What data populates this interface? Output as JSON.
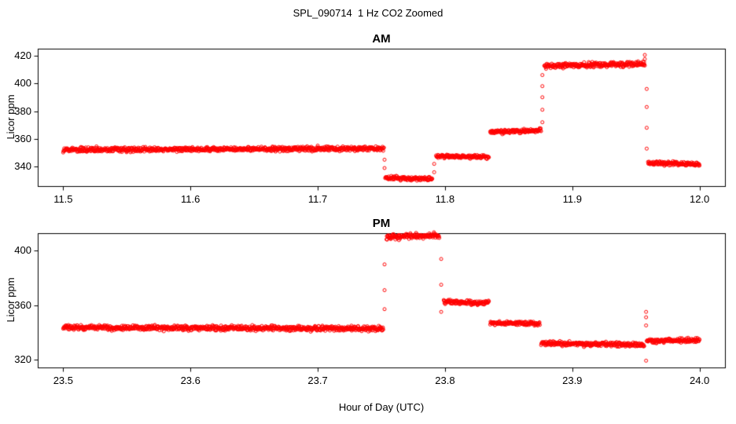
{
  "figure": {
    "title": "SPL_090714  1 Hz CO2 Zoomed",
    "xlabel": "Hour of Day (UTC)",
    "background": "#ffffff",
    "point_color": "#ff0000",
    "axis_color": "#000000"
  },
  "chart_data": [
    {
      "type": "scatter",
      "title": "AM",
      "ylabel": "Licor ppm",
      "marker": "open-circle",
      "sample_hz": 1,
      "xlim": [
        11.48,
        12.02
      ],
      "ylim": [
        326,
        425
      ],
      "xticks": [
        11.5,
        11.6,
        11.7,
        11.8,
        11.9,
        12.0
      ],
      "xtick_labels": [
        "11.5",
        "11.6",
        "11.7",
        "11.8",
        "11.9",
        "12.0"
      ],
      "yticks": [
        340,
        360,
        380,
        400,
        420
      ],
      "ytick_labels": [
        "340",
        "360",
        "380",
        "400",
        "420"
      ],
      "segments": [
        {
          "x0": 11.5,
          "x1": 11.752,
          "y0": 352.3,
          "y1": 353.0,
          "sd": 0.8
        },
        {
          "x0": 11.753,
          "x1": 11.79,
          "y0": 332.0,
          "y1": 331.0,
          "sd": 0.7
        },
        {
          "x0": 11.793,
          "x1": 11.8345,
          "y0": 347.5,
          "y1": 347.0,
          "sd": 0.7
        },
        {
          "x0": 11.8355,
          "x1": 11.8755,
          "y0": 364.8,
          "y1": 366.2,
          "sd": 0.7
        },
        {
          "x0": 11.878,
          "x1": 11.957,
          "y0": 412.5,
          "y1": 414.0,
          "sd": 0.9
        },
        {
          "x0": 11.9595,
          "x1": 12.0,
          "y0": 342.5,
          "y1": 342.0,
          "sd": 0.7
        }
      ],
      "transition_points": [
        {
          "x": 11.7525,
          "values": [
            345,
            339
          ]
        },
        {
          "x": 11.7915,
          "values": [
            336,
            342
          ]
        },
        {
          "x": 11.8765,
          "values": [
            372,
            381,
            390,
            398,
            406
          ]
        },
        {
          "x": 11.957,
          "values": [
            417.5,
            420.5
          ]
        },
        {
          "x": 11.9585,
          "values": [
            396,
            383,
            368,
            353
          ]
        }
      ]
    },
    {
      "type": "scatter",
      "title": "PM",
      "ylabel": "Licor ppm",
      "marker": "open-circle",
      "sample_hz": 1,
      "xlim": [
        23.48,
        24.02
      ],
      "ylim": [
        314,
        413
      ],
      "xticks": [
        23.5,
        23.6,
        23.7,
        23.8,
        23.9,
        24.0
      ],
      "xtick_labels": [
        "23.5",
        "23.6",
        "23.7",
        "23.8",
        "23.9",
        "24.0"
      ],
      "yticks": [
        320,
        360,
        400
      ],
      "ytick_labels": [
        "320",
        "360",
        "400"
      ],
      "segments": [
        {
          "x0": 23.5,
          "x1": 23.7515,
          "y0": 343.5,
          "y1": 342.5,
          "sd": 0.9
        },
        {
          "x0": 23.754,
          "x1": 23.7955,
          "y0": 410.0,
          "y1": 411.5,
          "sd": 1.0
        },
        {
          "x0": 23.799,
          "x1": 23.8345,
          "y0": 362.5,
          "y1": 361.5,
          "sd": 0.8
        },
        {
          "x0": 23.8355,
          "x1": 23.8745,
          "y0": 347.0,
          "y1": 346.0,
          "sd": 0.7
        },
        {
          "x0": 23.8755,
          "x1": 23.9565,
          "y0": 331.8,
          "y1": 330.8,
          "sd": 0.8
        },
        {
          "x0": 23.9585,
          "x1": 24.0,
          "y0": 333.5,
          "y1": 334.0,
          "sd": 0.8
        }
      ],
      "transition_points": [
        {
          "x": 23.7525,
          "values": [
            357,
            371,
            390
          ]
        },
        {
          "x": 23.797,
          "values": [
            394,
            375,
            355
          ]
        },
        {
          "x": 23.958,
          "values": [
            355,
            351,
            345,
            319
          ]
        }
      ]
    }
  ]
}
